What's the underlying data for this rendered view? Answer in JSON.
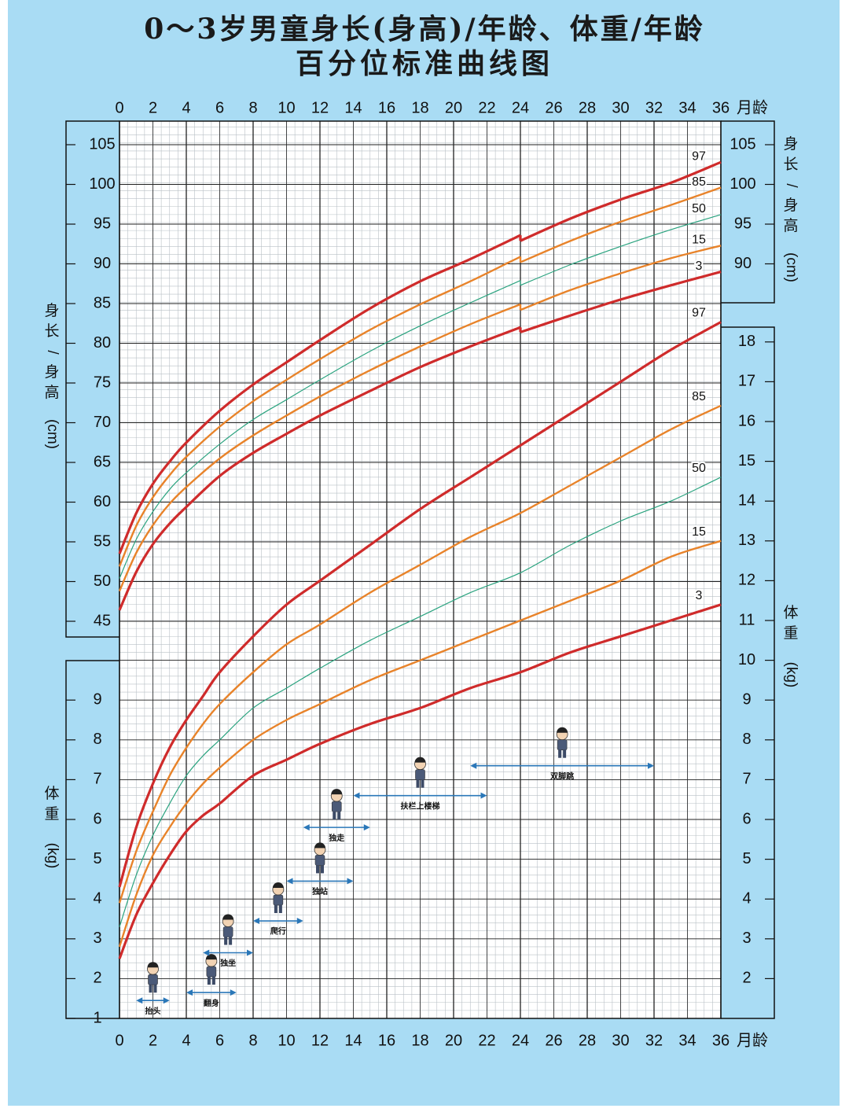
{
  "title_line1": "0～3岁男童身长(身高)/年龄、体重/年龄",
  "title_line2": "百分位标准曲线图",
  "month_unit": "月龄",
  "x_ticks": [
    0,
    2,
    4,
    6,
    8,
    10,
    12,
    14,
    16,
    18,
    20,
    22,
    24,
    26,
    28,
    30,
    32,
    34,
    36
  ],
  "height_axis_label": "身长/身高(cm)",
  "weight_axis_label": "体重(kg)",
  "height_ticks_left": [
    45,
    50,
    55,
    60,
    65,
    70,
    75,
    80,
    85,
    90,
    95,
    100,
    105
  ],
  "height_ticks_right": [
    90,
    95,
    100,
    105
  ],
  "weight_ticks_left": [
    1,
    2,
    3,
    4,
    5,
    6,
    7,
    8,
    9
  ],
  "weight_ticks_right": [
    2,
    3,
    4,
    5,
    6,
    7,
    8,
    9,
    10,
    11,
    12,
    13,
    14,
    15,
    16,
    17,
    18
  ],
  "colors": {
    "p3_p97": "#cf2b2b",
    "p15_p85": "#e8832a",
    "p50": "#2aa37f",
    "milestone_arrow": "#2a77b8"
  },
  "chart_data": [
    {
      "type": "line",
      "title": "0～3岁男童身长(身高)/年龄",
      "xlabel": "月龄",
      "ylabel": "身长/身高(cm)",
      "xlim": [
        0,
        36
      ],
      "ylim": [
        45,
        105
      ],
      "x": [
        0,
        1,
        2,
        3,
        4,
        6,
        8,
        10,
        12,
        15,
        18,
        21,
        24,
        24,
        27,
        30,
        33,
        36
      ],
      "series": [
        {
          "name": "97",
          "values": [
            53.5,
            58.6,
            62.3,
            65.1,
            67.5,
            71.5,
            74.8,
            77.6,
            80.4,
            84.4,
            87.8,
            90.6,
            93.6,
            92.9,
            95.7,
            98.1,
            100.2,
            102.8
          ]
        },
        {
          "name": "85",
          "values": [
            51.9,
            57.0,
            60.6,
            63.4,
            65.7,
            69.5,
            72.7,
            75.4,
            78.0,
            81.7,
            84.9,
            87.8,
            90.9,
            90.2,
            92.9,
            95.3,
            97.4,
            99.6
          ]
        },
        {
          "name": "50",
          "values": [
            50.4,
            55.3,
            58.8,
            61.6,
            63.7,
            67.3,
            70.4,
            72.9,
            75.4,
            79.0,
            82.2,
            85.1,
            87.9,
            87.3,
            89.9,
            92.2,
            94.3,
            96.2
          ]
        },
        {
          "name": "15",
          "values": [
            48.8,
            53.6,
            57.1,
            59.8,
            61.9,
            65.5,
            68.4,
            70.9,
            73.3,
            76.6,
            79.6,
            82.4,
            84.9,
            84.2,
            86.7,
            88.8,
            90.7,
            92.3
          ]
        },
        {
          "name": "3",
          "values": [
            46.4,
            51.2,
            54.7,
            57.3,
            59.4,
            63.3,
            66.2,
            68.6,
            70.9,
            74.0,
            77.0,
            79.6,
            82.0,
            81.4,
            83.5,
            85.5,
            87.3,
            89.0
          ]
        }
      ]
    },
    {
      "type": "line",
      "title": "0～3岁男童体重/年龄",
      "xlabel": "月龄",
      "ylabel": "体重(kg)",
      "xlim": [
        0,
        36
      ],
      "ylim": [
        1,
        18
      ],
      "x": [
        0,
        1,
        2,
        3,
        4,
        5,
        6,
        8,
        10,
        12,
        15,
        18,
        21,
        24,
        27,
        30,
        33,
        36
      ],
      "series": [
        {
          "name": "97",
          "values": [
            4.3,
            5.8,
            6.9,
            7.8,
            8.5,
            9.1,
            9.7,
            10.6,
            11.4,
            12.0,
            12.9,
            13.8,
            14.6,
            15.4,
            16.2,
            17.0,
            17.8,
            18.5
          ]
        },
        {
          "name": "85",
          "values": [
            3.9,
            5.2,
            6.2,
            7.1,
            7.8,
            8.4,
            8.9,
            9.7,
            10.4,
            10.9,
            11.7,
            12.4,
            13.1,
            13.7,
            14.4,
            15.1,
            15.8,
            16.4
          ]
        },
        {
          "name": "50",
          "values": [
            3.3,
            4.6,
            5.6,
            6.4,
            7.1,
            7.6,
            8.0,
            8.8,
            9.3,
            9.8,
            10.5,
            11.1,
            11.7,
            12.2,
            12.9,
            13.5,
            14.0,
            14.6
          ]
        },
        {
          "name": "15",
          "values": [
            2.8,
            4.1,
            5.1,
            5.8,
            6.4,
            6.9,
            7.3,
            8.0,
            8.5,
            8.9,
            9.5,
            10.0,
            10.5,
            11.0,
            11.5,
            12.0,
            12.6,
            13.0
          ]
        },
        {
          "name": "3",
          "values": [
            2.5,
            3.6,
            4.4,
            5.1,
            5.7,
            6.1,
            6.4,
            7.1,
            7.5,
            7.9,
            8.4,
            8.8,
            9.3,
            9.7,
            10.2,
            10.6,
            11.0,
            11.4
          ]
        }
      ]
    }
  ],
  "milestones": [
    {
      "label": "抬头",
      "from": 1,
      "to": 3,
      "weight": 1.45
    },
    {
      "label": "翻身",
      "from": 4,
      "to": 7,
      "weight": 1.65
    },
    {
      "label": "独坐",
      "from": 5,
      "to": 8,
      "weight": 2.65
    },
    {
      "label": "爬行",
      "from": 8,
      "to": 11,
      "weight": 3.45
    },
    {
      "label": "独站",
      "from": 10,
      "to": 14,
      "weight": 4.45
    },
    {
      "label": "独走",
      "from": 11,
      "to": 15,
      "weight": 5.8
    },
    {
      "label": "扶栏上楼梯",
      "from": 14,
      "to": 22,
      "weight": 6.6
    },
    {
      "label": "双脚跳",
      "from": 21,
      "to": 32,
      "weight": 7.35
    }
  ]
}
